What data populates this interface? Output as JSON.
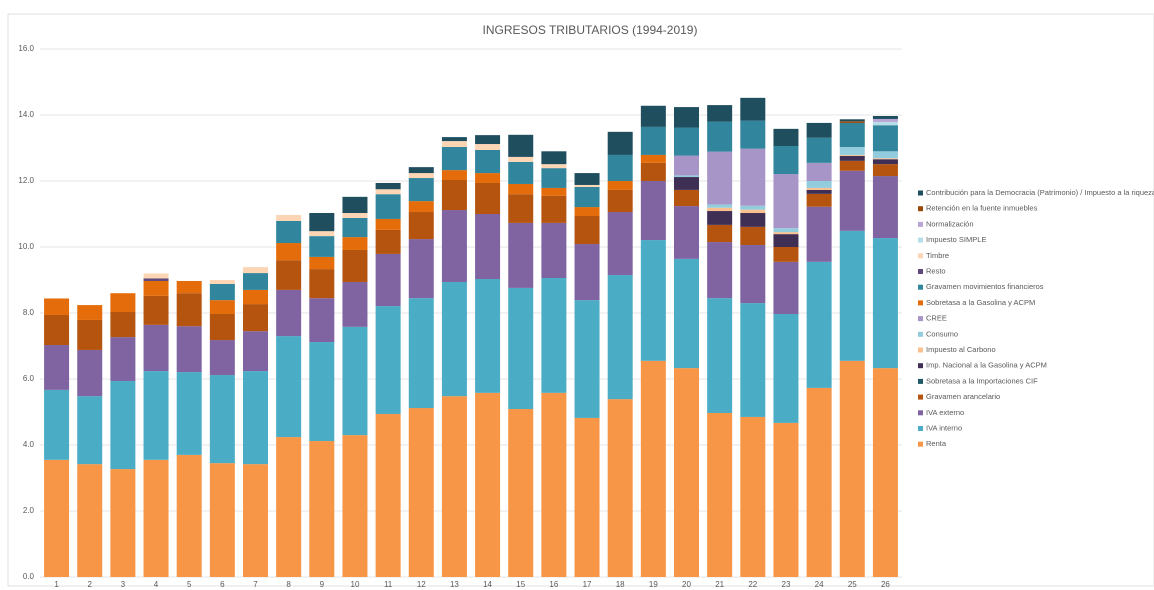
{
  "chart_data": {
    "type": "stacked_bar",
    "title": "INGRESOS TRIBUTARIOS (1994-2019)",
    "categories": [
      "1",
      "2",
      "3",
      "4",
      "5",
      "6",
      "7",
      "8",
      "9",
      "10",
      "11",
      "12",
      "13",
      "14",
      "15",
      "16",
      "17",
      "18",
      "19",
      "20",
      "21",
      "22",
      "23",
      "24",
      "25",
      "26"
    ],
    "ylim": [
      0,
      16
    ],
    "yticks": [
      {
        "value": 0,
        "label": "0.0"
      },
      {
        "value": 2,
        "label": "2.0"
      },
      {
        "value": 4,
        "label": "4.0"
      },
      {
        "value": 6,
        "label": "6.0"
      },
      {
        "value": 8,
        "label": "8.0"
      },
      {
        "value": 10,
        "label": "10.0"
      },
      {
        "value": 12,
        "label": "12.0"
      },
      {
        "value": 14,
        "label": "14.0"
      },
      {
        "value": 16,
        "label": "16.0"
      }
    ],
    "grid": true,
    "legend": "right",
    "series": [
      {
        "name": "Renta",
        "color": "#f79646",
        "values": [
          3.55,
          3.42,
          3.27,
          3.55,
          3.7,
          3.45,
          3.42,
          4.24,
          4.12,
          4.3,
          4.94,
          5.12,
          5.48,
          5.58,
          5.09,
          5.58,
          4.82,
          5.39,
          6.55,
          6.33,
          4.97,
          4.85,
          4.67,
          5.73,
          6.55,
          6.33
        ]
      },
      {
        "name": "IVA interno",
        "color": "#4bacc6",
        "values": [
          2.12,
          2.06,
          2.67,
          2.69,
          2.51,
          2.67,
          2.82,
          3.06,
          3.0,
          3.28,
          3.27,
          3.33,
          3.46,
          3.45,
          3.67,
          3.48,
          3.57,
          3.76,
          3.66,
          3.31,
          3.48,
          3.45,
          3.3,
          3.82,
          3.94,
          3.94
        ]
      },
      {
        "name": "IVA externo",
        "color": "#8064a2",
        "values": [
          1.36,
          1.4,
          1.33,
          1.4,
          1.39,
          1.06,
          1.21,
          1.4,
          1.33,
          1.36,
          1.58,
          1.79,
          2.18,
          1.97,
          1.97,
          1.67,
          1.7,
          1.91,
          1.79,
          1.6,
          1.7,
          1.76,
          1.58,
          1.67,
          1.82,
          1.88
        ]
      },
      {
        "name": "Gravamen arancelario",
        "color": "#b5540f",
        "values": [
          0.91,
          0.91,
          0.76,
          0.88,
          1.0,
          0.79,
          0.82,
          0.9,
          0.88,
          0.97,
          0.73,
          0.82,
          0.91,
          0.94,
          0.87,
          0.82,
          0.85,
          0.67,
          0.55,
          0.49,
          0.52,
          0.55,
          0.45,
          0.39,
          0.3,
          0.36
        ]
      },
      {
        "name": "Sobretasa a la Importaciones CIF",
        "color": "#215968",
        "values": [
          0,
          0,
          0,
          0,
          0,
          0,
          0,
          0,
          0,
          0,
          0,
          0,
          0,
          0,
          0,
          0,
          0,
          0,
          0,
          0,
          0,
          0,
          0,
          0,
          0,
          0
        ]
      },
      {
        "name": "Imp. Nacional a la Gasolina y ACPM",
        "color": "#3f2f55",
        "values": [
          0,
          0,
          0,
          0,
          0,
          0,
          0,
          0,
          0,
          0,
          0,
          0,
          0,
          0,
          0,
          0,
          0,
          0,
          0,
          0.39,
          0.42,
          0.42,
          0.39,
          0.12,
          0.15,
          0.15
        ]
      },
      {
        "name": "Impuesto al Carbono",
        "color": "#fac090",
        "values": [
          0,
          0,
          0,
          0,
          0,
          0,
          0,
          0,
          0,
          0,
          0,
          0,
          0,
          0,
          0,
          0,
          0,
          0,
          0,
          0,
          0.1,
          0.1,
          0.06,
          0.06,
          0.03,
          0.03
        ]
      },
      {
        "name": "Consumo",
        "color": "#93cddd",
        "values": [
          0,
          0,
          0,
          0,
          0,
          0,
          0,
          0,
          0,
          0,
          0,
          0,
          0,
          0,
          0,
          0,
          0,
          0,
          0,
          0.05,
          0.1,
          0.12,
          0.12,
          0.21,
          0.24,
          0.21
        ]
      },
      {
        "name": "CREE",
        "color": "#a895c8",
        "values": [
          0,
          0,
          0,
          0,
          0,
          0,
          0,
          0,
          0,
          0,
          0,
          0,
          0,
          0,
          0,
          0,
          0,
          0,
          0,
          0.6,
          1.6,
          1.73,
          1.64,
          0.55,
          0,
          0
        ]
      },
      {
        "name": "Sobretasa a la Gasolina y ACPM",
        "color": "#e46c0a",
        "values": [
          0.5,
          0.45,
          0.57,
          0.45,
          0.37,
          0.42,
          0.43,
          0.52,
          0.37,
          0.39,
          0.33,
          0.33,
          0.3,
          0.3,
          0.31,
          0.24,
          0.27,
          0.27,
          0.24,
          0,
          0,
          0,
          0,
          0,
          0,
          0
        ]
      },
      {
        "name": "Gravamen movimientos financieros",
        "color": "#31859c",
        "values": [
          0,
          0,
          0,
          0,
          0,
          0.49,
          0.51,
          0.67,
          0.63,
          0.58,
          0.75,
          0.7,
          0.7,
          0.7,
          0.67,
          0.6,
          0.61,
          0.79,
          0.85,
          0.85,
          0.91,
          0.85,
          0.85,
          0.76,
          0.73,
          0.79
        ]
      },
      {
        "name": "Resto",
        "color": "#5f497a",
        "values": [
          0,
          0,
          0,
          0.08,
          0,
          0,
          0,
          0,
          0,
          0,
          0,
          0,
          0,
          0,
          0,
          0,
          0,
          0,
          0,
          0,
          0,
          0,
          0,
          0,
          0,
          0
        ]
      },
      {
        "name": "Timbre",
        "color": "#fcd5b5",
        "values": [
          0,
          0,
          0,
          0.15,
          0,
          0.12,
          0.18,
          0.18,
          0.15,
          0.15,
          0.15,
          0.15,
          0.18,
          0.18,
          0.15,
          0.12,
          0.06,
          0,
          0,
          0,
          0,
          0,
          0,
          0,
          0,
          0
        ]
      },
      {
        "name": "Impuesto SIMPLE",
        "color": "#b7dee8",
        "values": [
          0,
          0,
          0,
          0,
          0,
          0,
          0,
          0,
          0,
          0,
          0,
          0,
          0,
          0,
          0,
          0,
          0,
          0,
          0,
          0,
          0,
          0,
          0,
          0,
          0,
          0.1
        ]
      },
      {
        "name": "Normalización",
        "color": "#b8a7d6",
        "values": [
          0,
          0,
          0,
          0,
          0,
          0,
          0,
          0,
          0,
          0,
          0,
          0,
          0,
          0,
          0,
          0,
          0,
          0,
          0,
          0,
          0,
          0,
          0,
          0,
          0,
          0.09
        ]
      },
      {
        "name": "Retención en la fuente inmuebles",
        "color": "#984807",
        "values": [
          0,
          0,
          0,
          0,
          0,
          0,
          0,
          0,
          0,
          0,
          0,
          0,
          0,
          0,
          0,
          0,
          0,
          0,
          0,
          0,
          0,
          0,
          0,
          0,
          0.05,
          0
        ]
      },
      {
        "name": "Contribución para la Democracia (Patrimonio) / Impuesto a la riqueza",
        "color": "#1f4e5f",
        "values": [
          0,
          0,
          0,
          0,
          0,
          0,
          0,
          0,
          0.55,
          0.49,
          0.19,
          0.18,
          0.12,
          0.27,
          0.67,
          0.39,
          0.36,
          0.7,
          0.64,
          0.62,
          0.5,
          0.69,
          0.52,
          0.45,
          0.06,
          0.09
        ]
      }
    ]
  }
}
